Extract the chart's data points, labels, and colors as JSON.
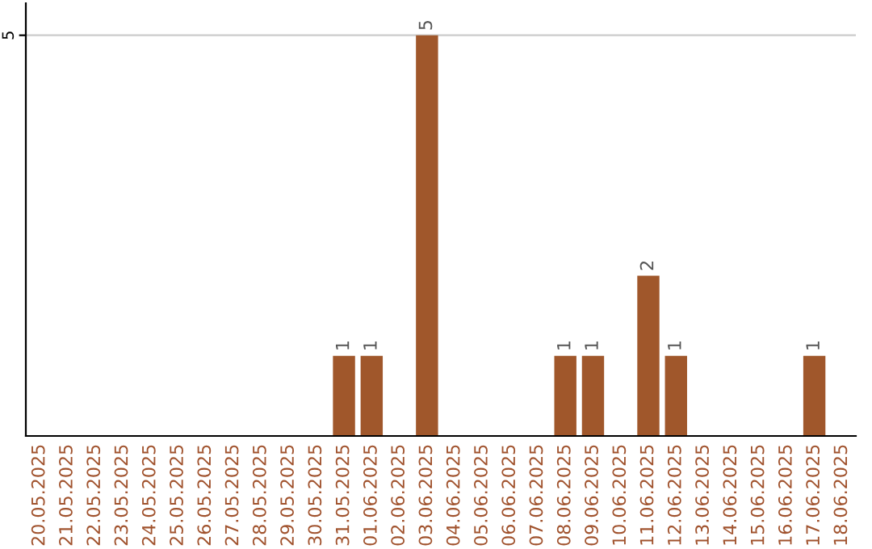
{
  "chart_data": {
    "type": "bar",
    "categories": [
      "20.05.2025",
      "21.05.2025",
      "22.05.2025",
      "23.05.2025",
      "24.05.2025",
      "25.05.2025",
      "26.05.2025",
      "27.05.2025",
      "28.05.2025",
      "29.05.2025",
      "30.05.2025",
      "31.05.2025",
      "01.06.2025",
      "02.06.2025",
      "03.06.2025",
      "04.06.2025",
      "05.06.2025",
      "06.06.2025",
      "07.06.2025",
      "08.06.2025",
      "09.06.2025",
      "10.06.2025",
      "11.06.2025",
      "12.06.2025",
      "13.06.2025",
      "14.06.2025",
      "15.06.2025",
      "16.06.2025",
      "17.06.2025",
      "18.06.2025"
    ],
    "values": [
      0,
      0,
      0,
      0,
      0,
      0,
      0,
      0,
      0,
      0,
      0,
      1,
      1,
      0,
      5,
      0,
      0,
      0,
      0,
      1,
      1,
      0,
      2,
      1,
      0,
      0,
      0,
      0,
      1,
      0
    ],
    "value_labels": [
      null,
      null,
      null,
      null,
      null,
      null,
      null,
      null,
      null,
      null,
      null,
      "1",
      "1",
      null,
      "5",
      null,
      null,
      null,
      null,
      "1",
      "1",
      null,
      "2",
      "1",
      null,
      null,
      null,
      null,
      "1",
      null
    ],
    "color": "#a0572b",
    "ylim": [
      0,
      5.4
    ],
    "yticks": [
      5
    ],
    "grid": "y"
  }
}
